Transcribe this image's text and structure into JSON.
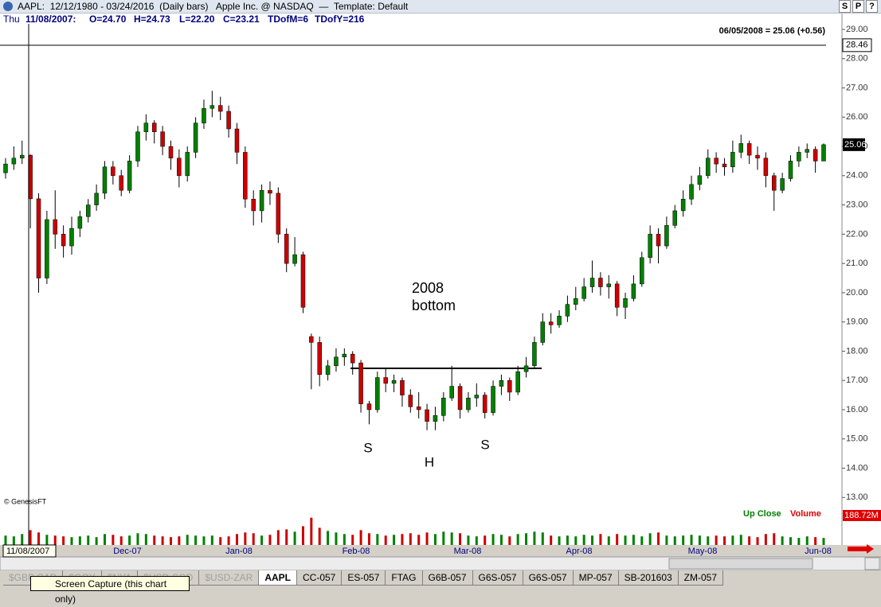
{
  "window": {
    "title": "AAPL:  12/12/1980 - 03/24/2016  (Daily bars)   Apple Inc. @ NASDAQ  —  Template: Default",
    "buttons": [
      "S",
      "P",
      "?"
    ]
  },
  "info": {
    "day": "Thu",
    "date": "11/08/2007:",
    "fields": [
      "O=24.70",
      "H=24.73",
      "L=22.20",
      "C=23.21",
      "TDofM=6",
      "TDofY=216"
    ]
  },
  "chart_data": {
    "type": "candlestick",
    "last_quote": "06/05/2008 = 25.06 (+0.56)",
    "last_price": 25.06,
    "cursor_price": 28.46,
    "cursor_date": "11/08/2007",
    "credit": "© GenesisFT",
    "legend": [
      {
        "name": "Up Close",
        "color": "#008000"
      },
      {
        "name": "Volume",
        "color": "#e00000"
      }
    ],
    "annotations": [
      "2008",
      "bottom",
      "S",
      "H",
      "S"
    ],
    "months": [
      "Dec-07",
      "Jan-08",
      "Feb-08",
      "Mar-08",
      "Apr-08",
      "May-08",
      "Jun-08"
    ],
    "up_color": "#008000",
    "down_color": "#cc0000",
    "ylim": [
      12.6,
      29.19
    ],
    "yticks": [
      {
        "value": 13,
        "label": "13.00"
      },
      {
        "value": 14,
        "label": "14.00"
      },
      {
        "value": 15,
        "label": "15.00"
      },
      {
        "value": 16,
        "label": "16.00"
      },
      {
        "value": 17,
        "label": "17.00"
      },
      {
        "value": 18,
        "label": "18.00"
      },
      {
        "value": 19,
        "label": "19.00"
      },
      {
        "value": 20,
        "label": "20.00"
      },
      {
        "value": 21,
        "label": "21.00"
      },
      {
        "value": 22,
        "label": "22.00"
      },
      {
        "value": 23,
        "label": "23.00"
      },
      {
        "value": 24,
        "label": "24.00"
      },
      {
        "value": 25,
        "label": "25.00"
      },
      {
        "value": 26,
        "label": "26.00"
      },
      {
        "value": 27,
        "label": "27.00"
      },
      {
        "value": 28,
        "label": "28.00"
      },
      {
        "value": 29,
        "label": "29.00"
      }
    ],
    "open": [
      24.1,
      24.4,
      24.6,
      24.7,
      23.21,
      20.5,
      22.5,
      22.0,
      21.6,
      22.2,
      22.6,
      23.0,
      23.4,
      24.3,
      24.0,
      23.5,
      24.5,
      25.5,
      25.8,
      25.5,
      25.0,
      24.6,
      24.0,
      24.8,
      25.8,
      26.3,
      26.4,
      26.2,
      25.6,
      24.8,
      23.2,
      22.8,
      23.5,
      23.4,
      22.0,
      21.0,
      21.3,
      18.5,
      18.3,
      17.2,
      17.5,
      17.8,
      17.9,
      17.6,
      16.2,
      16.0,
      17.1,
      16.9,
      17.0,
      16.5,
      16.1,
      16.0,
      15.6,
      15.8,
      16.4,
      16.8,
      16.0,
      16.4,
      16.5,
      15.9,
      16.8,
      17.0,
      16.6,
      17.3,
      17.5,
      18.3,
      19.0,
      18.9,
      19.2,
      19.6,
      19.8,
      20.2,
      20.5,
      20.2,
      20.3,
      19.5,
      19.8,
      20.3,
      21.2,
      22.0,
      21.6,
      22.3,
      22.8,
      23.2,
      23.7,
      24.0,
      24.6,
      24.4,
      24.3,
      24.8,
      25.1,
      24.7,
      24.6,
      24.0,
      23.5,
      23.9,
      24.5,
      24.8,
      24.9,
      24.5
    ],
    "high": [
      24.6,
      25.0,
      25.2,
      24.73,
      23.4,
      22.8,
      23.5,
      22.3,
      22.6,
      22.8,
      23.2,
      23.7,
      24.5,
      24.5,
      24.2,
      24.7,
      25.7,
      26.1,
      25.9,
      25.7,
      25.2,
      24.9,
      25.0,
      26.0,
      26.6,
      26.9,
      26.7,
      26.4,
      25.8,
      25.0,
      23.5,
      23.7,
      23.8,
      23.6,
      22.2,
      21.9,
      21.4,
      18.6,
      18.5,
      17.7,
      18.1,
      18.1,
      18.0,
      17.7,
      16.3,
      17.3,
      17.4,
      17.2,
      17.1,
      16.7,
      16.6,
      16.2,
      16.1,
      16.6,
      17.5,
      16.9,
      16.6,
      16.9,
      16.6,
      17.0,
      17.2,
      17.1,
      17.5,
      17.8,
      18.5,
      19.3,
      19.3,
      19.4,
      19.9,
      20.2,
      20.5,
      21.1,
      20.7,
      20.6,
      20.4,
      20.0,
      20.6,
      21.4,
      22.3,
      22.2,
      22.6,
      23.0,
      23.5,
      24.0,
      24.3,
      24.9,
      24.8,
      24.6,
      25.2,
      25.4,
      25.2,
      25.0,
      24.8,
      24.1,
      24.1,
      24.7,
      25.0,
      25.1,
      25.0,
      25.1
    ],
    "low": [
      23.9,
      24.2,
      24.4,
      22.2,
      20.0,
      20.3,
      21.5,
      21.2,
      21.3,
      21.9,
      22.4,
      22.8,
      23.2,
      23.7,
      23.3,
      23.4,
      24.3,
      25.2,
      25.1,
      24.7,
      24.2,
      23.6,
      23.8,
      24.6,
      25.6,
      26.0,
      25.9,
      25.3,
      24.4,
      22.9,
      22.3,
      22.4,
      23.0,
      21.7,
      20.7,
      20.9,
      19.3,
      16.7,
      16.8,
      17.0,
      17.3,
      17.5,
      17.2,
      15.9,
      15.5,
      15.9,
      16.6,
      16.6,
      16.1,
      15.9,
      15.7,
      15.3,
      15.3,
      15.6,
      16.3,
      15.7,
      15.9,
      16.1,
      15.7,
      15.8,
      16.5,
      16.3,
      16.5,
      17.1,
      17.4,
      18.2,
      18.6,
      18.8,
      19.0,
      19.4,
      19.7,
      20.0,
      19.9,
      19.8,
      19.2,
      19.1,
      19.7,
      20.2,
      21.0,
      21.0,
      21.5,
      22.2,
      22.6,
      23.0,
      23.5,
      23.9,
      24.1,
      24.0,
      24.1,
      24.6,
      24.4,
      24.2,
      23.6,
      22.8,
      23.4,
      23.8,
      24.3,
      24.6,
      24.1,
      24.5
    ],
    "close": [
      24.4,
      24.6,
      24.7,
      23.21,
      20.5,
      22.5,
      22.0,
      21.6,
      22.2,
      22.6,
      23.0,
      23.4,
      24.3,
      24.0,
      23.5,
      24.5,
      25.5,
      25.8,
      25.5,
      25.0,
      24.6,
      24.0,
      24.8,
      25.8,
      26.3,
      26.4,
      26.2,
      25.6,
      24.8,
      23.2,
      22.8,
      23.5,
      23.4,
      22.0,
      21.0,
      21.3,
      19.5,
      18.3,
      17.2,
      17.5,
      17.8,
      17.9,
      17.6,
      16.2,
      16.0,
      17.1,
      16.9,
      17.0,
      16.5,
      16.1,
      16.0,
      15.6,
      15.8,
      16.4,
      16.8,
      16.0,
      16.4,
      16.5,
      15.9,
      16.8,
      17.0,
      16.6,
      17.3,
      17.5,
      18.3,
      19.0,
      18.9,
      19.2,
      19.6,
      19.8,
      20.2,
      20.5,
      20.2,
      20.3,
      19.5,
      19.8,
      20.3,
      21.2,
      22.0,
      21.6,
      22.3,
      22.8,
      23.2,
      23.7,
      24.0,
      24.6,
      24.4,
      24.3,
      24.8,
      25.1,
      24.7,
      24.6,
      24.0,
      23.5,
      23.9,
      24.5,
      24.8,
      24.9,
      24.5,
      25.06
    ],
    "volume": {
      "ylim": [
        0,
        188.72
      ],
      "yticks": [
        {
          "value": 188.72,
          "label": "188.72M"
        }
      ],
      "values": [
        60,
        55,
        70,
        95,
        80,
        65,
        60,
        55,
        50,
        55,
        60,
        50,
        70,
        65,
        55,
        60,
        75,
        70,
        60,
        55,
        50,
        55,
        65,
        60,
        55,
        60,
        50,
        55,
        70,
        80,
        75,
        60,
        65,
        95,
        100,
        85,
        120,
        175,
        110,
        90,
        80,
        70,
        65,
        95,
        75,
        70,
        60,
        65,
        70,
        75,
        65,
        80,
        70,
        85,
        80,
        75,
        60,
        55,
        60,
        70,
        65,
        55,
        70,
        75,
        85,
        80,
        60,
        55,
        60,
        55,
        65,
        60,
        70,
        55,
        70,
        60,
        65,
        55,
        75,
        80,
        60,
        55,
        60,
        65,
        60,
        55,
        60,
        55,
        60,
        65,
        55,
        50,
        70,
        75,
        55,
        50,
        45,
        55,
        50,
        45
      ]
    }
  },
  "tabs": [
    "$GBP CAD",
    "$GOY",
    "$NYA",
    "$USD-SGD",
    "$USD-ZAR",
    "AAPL",
    "CC-057",
    "ES-057",
    "FTAG",
    "G6B-057",
    "G6S-057",
    "G6S-057",
    "MP-057",
    "SB-201603",
    "ZM-057"
  ],
  "active_tab": 5,
  "tooltip": "Screen Capture (this chart only)"
}
